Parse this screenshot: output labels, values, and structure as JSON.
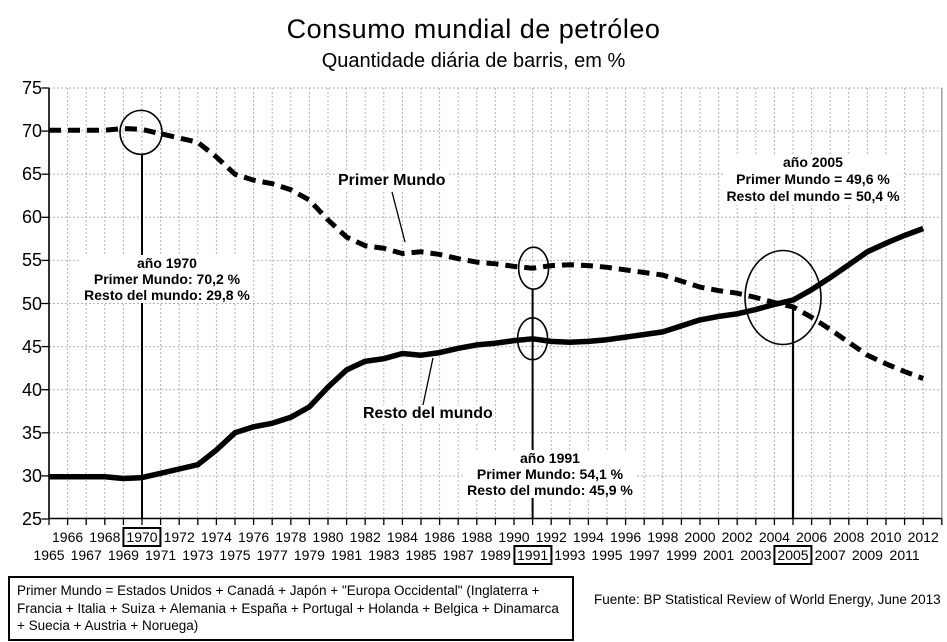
{
  "title": "Consumo mundial de petróleo",
  "subtitle": "Quantidade diária de barris, em %",
  "chart_data": {
    "type": "line",
    "title": "Consumo mundial de petróleo",
    "subtitle": "Quantidade diária de barris, em %",
    "xlabel": "",
    "ylabel": "",
    "ylim": [
      25,
      75
    ],
    "ytick_step": 5,
    "grid": "dotted-both-axes, vertical line every year, horizontal every 5",
    "legend_position": "inline-labels",
    "x": [
      1965,
      1966,
      1967,
      1968,
      1969,
      1970,
      1971,
      1972,
      1973,
      1974,
      1975,
      1976,
      1977,
      1978,
      1979,
      1980,
      1981,
      1982,
      1983,
      1984,
      1985,
      1986,
      1987,
      1988,
      1989,
      1990,
      1991,
      1992,
      1993,
      1994,
      1995,
      1996,
      1997,
      1998,
      1999,
      2000,
      2001,
      2002,
      2003,
      2004,
      2005,
      2006,
      2007,
      2008,
      2009,
      2010,
      2011,
      2012
    ],
    "series": [
      {
        "name": "Primer Mundo",
        "line_style": "dashed",
        "color": "#000000",
        "values": [
          70.1,
          70.1,
          70.1,
          70.1,
          70.3,
          70.2,
          69.7,
          69.2,
          68.7,
          67.0,
          65.0,
          64.3,
          63.9,
          63.2,
          62.0,
          59.7,
          57.7,
          56.7,
          56.4,
          55.8,
          56.0,
          55.7,
          55.2,
          54.8,
          54.6,
          54.3,
          54.1,
          54.4,
          54.5,
          54.4,
          54.2,
          53.9,
          53.6,
          53.3,
          52.6,
          51.9,
          51.5,
          51.2,
          50.7,
          50.1,
          49.6,
          48.4,
          47.0,
          45.5,
          44.0,
          43.0,
          42.1,
          41.3
        ]
      },
      {
        "name": "Resto del mundo",
        "line_style": "solid",
        "color": "#000000",
        "values": [
          29.9,
          29.9,
          29.9,
          29.9,
          29.7,
          29.8,
          30.3,
          30.8,
          31.3,
          33.0,
          35.0,
          35.7,
          36.1,
          36.8,
          38.0,
          40.3,
          42.3,
          43.3,
          43.6,
          44.2,
          44.0,
          44.3,
          44.8,
          45.2,
          45.4,
          45.7,
          45.9,
          45.6,
          45.5,
          45.6,
          45.8,
          46.1,
          46.4,
          46.7,
          47.4,
          48.1,
          48.5,
          48.8,
          49.3,
          49.9,
          50.4,
          51.6,
          53.0,
          54.5,
          56.0,
          57.0,
          57.9,
          58.7
        ]
      }
    ],
    "highlight_points": [
      {
        "year": 1970,
        "primer_mundo": 70.2,
        "resto_del_mundo": 29.8
      },
      {
        "year": 1991,
        "primer_mundo": 54.1,
        "resto_del_mundo": 45.9
      },
      {
        "year": 2005,
        "primer_mundo": 49.6,
        "resto_del_mundo": 50.4
      }
    ]
  },
  "annotations": {
    "a1970": {
      "title": "año 1970",
      "line1": "Primer Mundo: 70,2 %",
      "line2": "Resto del mundo: 29,8 %"
    },
    "a1991": {
      "title": "año 1991",
      "line1": "Primer Mundo: 54,1 %",
      "line2": "Resto del mundo: 45,9 %"
    },
    "a2005": {
      "title": "año 2005",
      "line1": "Primer Mundo = 49,6 %",
      "line2": "Resto del mundo = 50,4 %"
    }
  },
  "boxed_years": [
    1970,
    1991,
    2005
  ],
  "footnote": "Primer Mundo = Estados Unidos + Canadá + Japón + \"Europa Occidental\" (Inglaterra + Francia + Italia + Suiza + Alemania + España + Portugal + Holanda + Belgica + Dinamarca + Suecia + Austria + Noruega)",
  "source": "Fuente: BP Statistical Review of World Energy, June 2013",
  "colors": {
    "line": "#000000",
    "grid": "#b3b3b3",
    "background": "#ffffff",
    "axis": "#000000"
  }
}
